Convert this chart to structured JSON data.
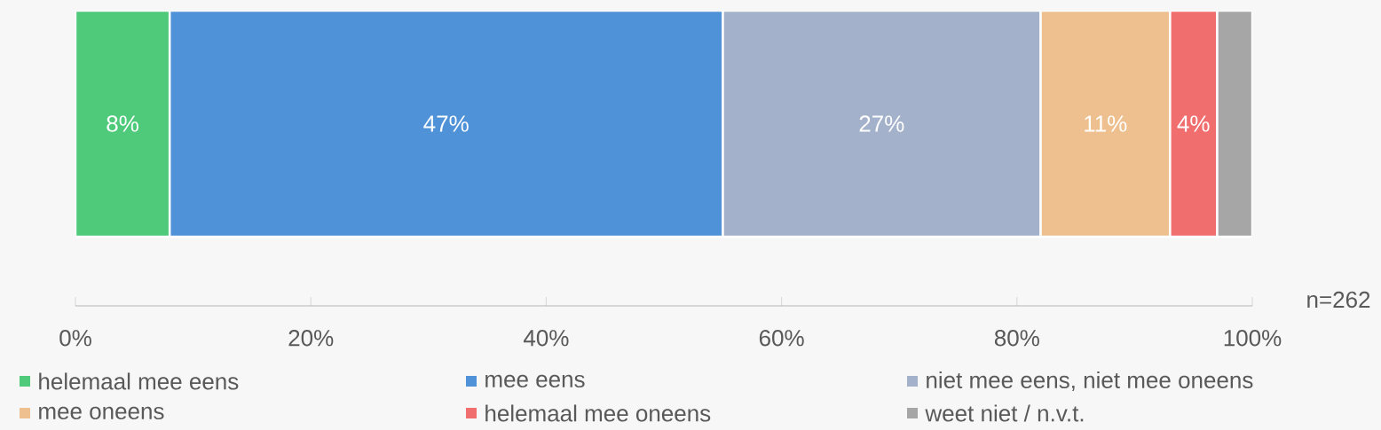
{
  "chart_data": {
    "type": "bar",
    "orientation": "horizontal",
    "stacked": true,
    "categories": [
      null
    ],
    "series": [
      {
        "name": "helemaal mee eens",
        "color": "#4fc97a",
        "values": [
          8
        ],
        "value_labels": [
          "8%"
        ]
      },
      {
        "name": "mee eens",
        "color": "#4f92d8",
        "values": [
          47
        ],
        "value_labels": [
          "47%"
        ]
      },
      {
        "name": "niet mee eens, niet mee oneens",
        "color": "#a3b1ca",
        "values": [
          27
        ],
        "value_labels": [
          "27%"
        ]
      },
      {
        "name": "mee oneens",
        "color": "#eec08f",
        "values": [
          11
        ],
        "value_labels": [
          "11%"
        ]
      },
      {
        "name": "helemaal mee oneens",
        "color": "#f06e6e",
        "values": [
          4
        ],
        "value_labels": [
          "4%"
        ]
      },
      {
        "name": "weet niet / n.v.t.",
        "color": "#a6a6a6",
        "values": [
          3
        ],
        "value_labels": [
          null
        ]
      }
    ],
    "xlim": [
      0,
      100
    ],
    "xticks": [
      {
        "value": 0,
        "label": "0%"
      },
      {
        "value": 20,
        "label": "20%"
      },
      {
        "value": 40,
        "label": "40%"
      },
      {
        "value": 60,
        "label": "60%"
      },
      {
        "value": 80,
        "label": "80%"
      },
      {
        "value": 100,
        "label": "100%"
      }
    ],
    "tick_labels": "x",
    "legend": "bottom",
    "grid": false,
    "annotations": [
      "n=262"
    ]
  }
}
